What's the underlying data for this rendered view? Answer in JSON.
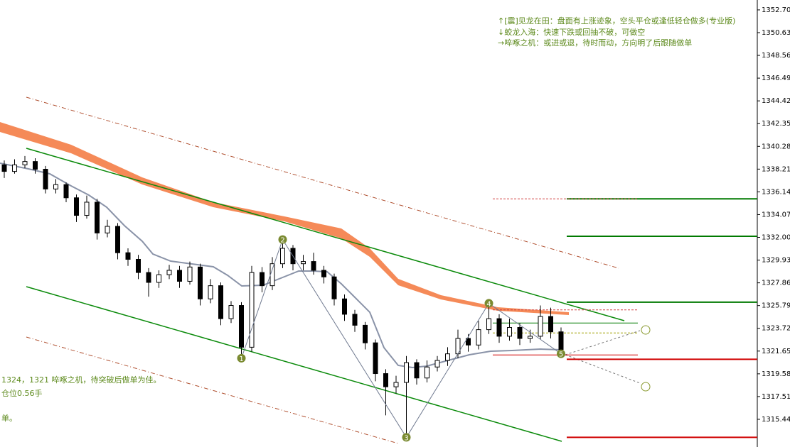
{
  "chart_data": {
    "type": "candlestick",
    "open": [
      1338.6,
      1338.0,
      1338.6,
      1338.9,
      1338.2,
      1336.4,
      1336.8,
      1335.6,
      1334.0,
      1335.2,
      1332.4,
      1333.0,
      1330.6,
      1330.0,
      1328.8,
      1327.9,
      1328.6,
      1329.0,
      1328.0,
      1329.3,
      1326.4,
      1327.6,
      1324.6,
      1325.8,
      1322.0,
      1328.8,
      1327.6,
      1329.6,
      1331.0,
      1329.6,
      1329.8,
      1329.0,
      1328.4,
      1326.4,
      1325.0,
      1324.0,
      1322.4,
      1319.6,
      1318.4,
      1318.8,
      1320.6,
      1319.2,
      1320.2,
      1320.8,
      1321.4,
      1322.8,
      1322.2,
      1323.6,
      1324.6,
      1323.0,
      1323.8,
      1322.8,
      1323.0,
      1324.8,
      1323.4
    ],
    "high": [
      1339.0,
      1339.1,
      1339.4,
      1339.2,
      1338.5,
      1337.3,
      1337.0,
      1335.9,
      1335.8,
      1335.5,
      1333.6,
      1333.3,
      1331.0,
      1330.4,
      1329.2,
      1329.0,
      1329.5,
      1329.4,
      1329.8,
      1329.6,
      1328.2,
      1327.9,
      1326.2,
      1326.1,
      1329.4,
      1329.3,
      1330.2,
      1331.8,
      1331.3,
      1330.4,
      1330.6,
      1329.4,
      1328.7,
      1326.8,
      1325.4,
      1324.3,
      1322.7,
      1320.0,
      1319.4,
      1321.2,
      1320.9,
      1320.8,
      1321.2,
      1322.0,
      1323.6,
      1323.2,
      1324.4,
      1326.0,
      1325.0,
      1324.6,
      1324.2,
      1323.6,
      1325.8,
      1325.6,
      1323.8
    ],
    "low": [
      1337.4,
      1337.8,
      1338.3,
      1337.8,
      1336.0,
      1336.0,
      1335.2,
      1333.4,
      1333.7,
      1331.8,
      1332.0,
      1330.0,
      1329.4,
      1328.2,
      1326.6,
      1327.4,
      1328.2,
      1327.4,
      1327.7,
      1325.8,
      1326.0,
      1324.0,
      1324.2,
      1321.0,
      1321.6,
      1327.0,
      1327.2,
      1329.2,
      1329.0,
      1329.0,
      1328.6,
      1327.8,
      1325.8,
      1324.4,
      1323.4,
      1321.8,
      1318.9,
      1315.8,
      1317.8,
      1313.8,
      1318.6,
      1318.8,
      1319.8,
      1320.3,
      1321.0,
      1321.6,
      1321.8,
      1323.2,
      1322.4,
      1322.6,
      1322.2,
      1322.4,
      1322.7,
      1322.8,
      1321.4
    ],
    "close": [
      1338.0,
      1338.6,
      1338.9,
      1338.2,
      1336.4,
      1336.8,
      1335.6,
      1334.0,
      1335.2,
      1332.4,
      1333.0,
      1330.6,
      1330.0,
      1328.8,
      1327.9,
      1328.6,
      1329.0,
      1328.0,
      1329.3,
      1326.4,
      1327.6,
      1324.6,
      1325.8,
      1322.0,
      1328.8,
      1327.6,
      1329.6,
      1331.0,
      1329.6,
      1329.8,
      1329.0,
      1328.4,
      1326.4,
      1325.0,
      1324.0,
      1322.4,
      1319.6,
      1318.4,
      1318.8,
      1320.6,
      1319.2,
      1320.2,
      1320.8,
      1321.4,
      1322.8,
      1322.2,
      1323.6,
      1324.6,
      1323.0,
      1323.8,
      1322.8,
      1323.0,
      1324.8,
      1323.4,
      1321.8
    ],
    "ylim": [
      1312.92,
      1353.6
    ],
    "yticks": [
      {
        "value": 1352.7,
        "label": "1352.70"
      },
      1350.63,
      1348.56,
      1346.49,
      1344.42,
      1342.35,
      1340.28,
      1338.21,
      1336.14,
      1334.07,
      {
        "value": 1332,
        "label": "1332.00"
      },
      1329.93,
      1327.86,
      1325.79,
      1323.72,
      1321.65,
      1319.58,
      1317.51,
      1315.44
    ],
    "levels": [
      {
        "value": 1335.5,
        "color": "#007a00"
      },
      {
        "value": 1332.1,
        "color": "#007a00"
      },
      {
        "value": 1326.1,
        "color": "#007a00"
      },
      {
        "value": 1320.9,
        "color": "#d00000"
      },
      {
        "value": 1313.8,
        "color": "#d00000"
      }
    ],
    "short_levels": [
      {
        "value": 1335.5,
        "color": "#d04040",
        "dashed": true
      },
      {
        "value": 1325.4,
        "color": "#d04040",
        "dashed": true
      },
      {
        "value": 1324.2,
        "color": "#007a00",
        "dashed": false
      },
      {
        "value": 1323.3,
        "color": "#a0a000",
        "dashed": true
      },
      {
        "value": 1321.3,
        "color": "#d00000",
        "dashed": false
      }
    ],
    "zigzag": {
      "labels": [
        "1",
        "2",
        "3",
        "4",
        "5"
      ],
      "values": [
        1321.0,
        1331.8,
        1313.8,
        1326.0,
        1321.4
      ]
    },
    "annotations": [
      "↑[震]见龙在田：盘面有上涨迹象，空头平仓或逢低轻仓做多(专业版)",
      "↓蛟龙入海：快速下跌或回抽不破，可做空",
      "→啐啄之机：或进或退，待时而动，方向明了后跟随做单"
    ],
    "notes": [
      "1324，1321 啐啄之机，待突破后做单为佳。",
      "仓位0.56手",
      "单。"
    ]
  }
}
